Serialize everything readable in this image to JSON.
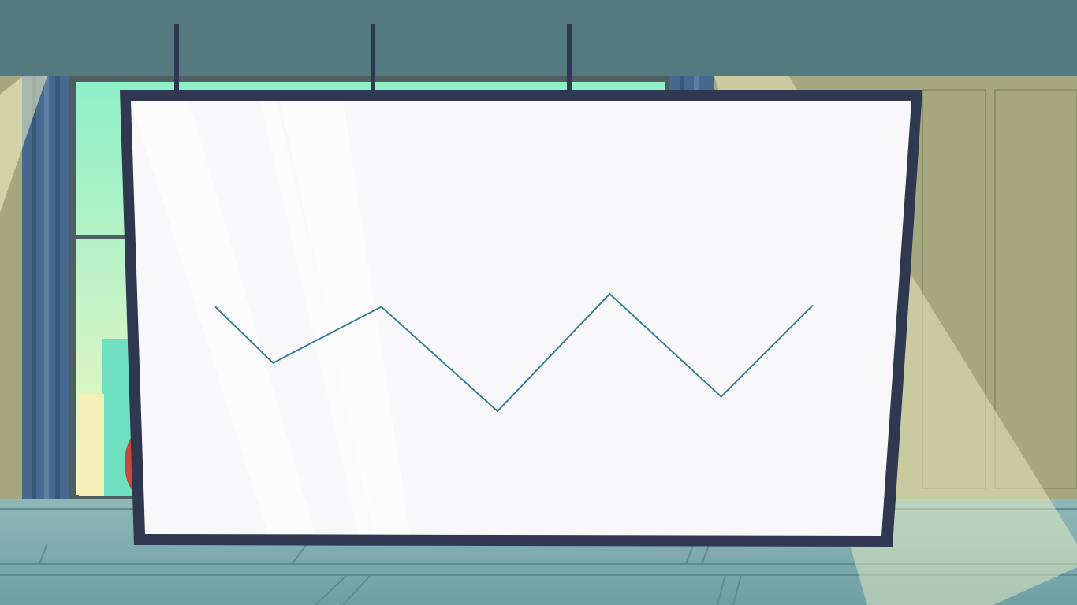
{
  "scene": {
    "colors": {
      "ceiling": "#547a80",
      "back_wall": "#a4a77f",
      "window_frame": "#4e5f63",
      "window_glass_top": "#8ef0c8",
      "window_glass_bottom": "#f4f5c4",
      "curtain": "#47698f",
      "floor": "#78a5aa",
      "floor_line": "#5d8c92",
      "light_beam": "#f7f7c7",
      "screen_frame": "#2f3850",
      "screen_surface": "#f8f8fa",
      "hanger_rod": "#2f3850",
      "plant": "#c8463a",
      "wall_panel_line": "#8c9068"
    },
    "chart_data": {
      "type": "line",
      "title": "",
      "xlabel": "",
      "ylabel": "",
      "line_color": "#3b7f96",
      "x": [
        0,
        1,
        2,
        3,
        4,
        5,
        6
      ],
      "values": [
        0.65,
        0.3,
        0.65,
        0.0,
        0.73,
        0.09,
        0.66
      ],
      "ylim": [
        0,
        1
      ]
    }
  }
}
